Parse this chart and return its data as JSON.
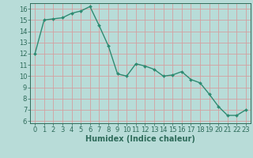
{
  "x": [
    0,
    1,
    2,
    3,
    4,
    5,
    6,
    7,
    8,
    9,
    10,
    11,
    12,
    13,
    14,
    15,
    16,
    17,
    18,
    19,
    20,
    21,
    22,
    23
  ],
  "y": [
    12,
    15,
    15.1,
    15.2,
    15.6,
    15.8,
    16.2,
    14.5,
    12.7,
    10.2,
    10.0,
    11.1,
    10.9,
    10.6,
    10.0,
    10.1,
    10.4,
    9.7,
    9.4,
    8.4,
    7.3,
    6.5,
    6.5,
    7.0
  ],
  "line_color": "#2e8b72",
  "marker": "D",
  "marker_size": 2.0,
  "bg_color": "#b8dcd8",
  "grid_color": "#d4a0a0",
  "xlabel": "Humidex (Indice chaleur)",
  "xlim": [
    -0.5,
    23.5
  ],
  "ylim": [
    5.8,
    16.5
  ],
  "yticks": [
    6,
    7,
    8,
    9,
    10,
    11,
    12,
    13,
    14,
    15,
    16
  ],
  "xticks": [
    0,
    1,
    2,
    3,
    4,
    5,
    6,
    7,
    8,
    9,
    10,
    11,
    12,
    13,
    14,
    15,
    16,
    17,
    18,
    19,
    20,
    21,
    22,
    23
  ],
  "tick_color": "#2e6b5a",
  "label_fontsize": 7.0,
  "tick_fontsize": 6.0,
  "linewidth": 1.0
}
